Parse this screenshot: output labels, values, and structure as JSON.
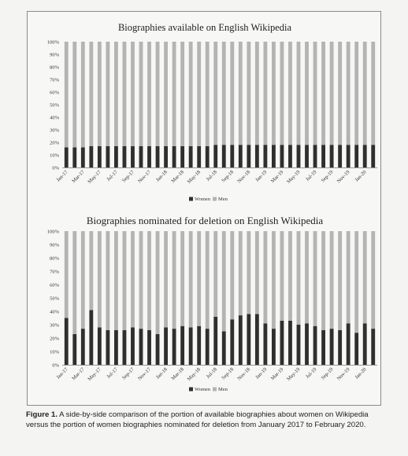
{
  "colors": {
    "women": "#2f2f2f",
    "men": "#b4b4b4",
    "axis": "#777777",
    "text": "#333333"
  },
  "chart_data": [
    {
      "type": "bar",
      "stacked": true,
      "title": "Biographies available on English Wikipedia",
      "ylim": [
        0,
        100
      ],
      "yticks": [
        "0%",
        "10%",
        "20%",
        "30%",
        "40%",
        "50%",
        "60%",
        "70%",
        "80%",
        "90%",
        "100%"
      ],
      "xtick_labels": [
        "Jan-17",
        "Mar-17",
        "May-17",
        "Jul-17",
        "Sep-17",
        "Nov-17",
        "Jan-18",
        "Mar-18",
        "May-18",
        "Jul-18",
        "Sep-18",
        "Nov-18",
        "Jan-19",
        "Mar-19",
        "May-19",
        "Jul-19",
        "Sep-19",
        "Nov-19",
        "Jan-20"
      ],
      "legend_position": "bottom",
      "series": [
        {
          "name": "Women",
          "values": [
            16,
            16,
            16,
            17,
            17,
            17,
            17,
            17,
            17,
            17,
            17,
            17,
            17,
            17,
            17,
            17,
            17,
            17,
            18,
            18,
            18,
            18,
            18,
            18,
            18,
            18,
            18,
            18,
            18,
            18,
            18,
            18,
            18,
            18,
            18,
            18,
            18,
            18
          ]
        },
        {
          "name": "Men",
          "values": [
            84,
            84,
            84,
            83,
            83,
            83,
            83,
            83,
            83,
            83,
            83,
            83,
            83,
            83,
            83,
            83,
            83,
            83,
            82,
            82,
            82,
            82,
            82,
            82,
            82,
            82,
            82,
            82,
            82,
            82,
            82,
            82,
            82,
            82,
            82,
            82,
            82,
            82
          ]
        }
      ]
    },
    {
      "type": "bar",
      "stacked": true,
      "title": "Biographies nominated for deletion on English Wikipedia",
      "ylim": [
        0,
        100
      ],
      "yticks": [
        "0%",
        "10%",
        "20%",
        "30%",
        "40%",
        "50%",
        "60%",
        "70%",
        "80%",
        "90%",
        "100%"
      ],
      "xtick_labels": [
        "Jan-17",
        "Mar-17",
        "May-17",
        "Jul-17",
        "Sep-17",
        "Nov-17",
        "Jan-18",
        "Mar-18",
        "May-18",
        "Jul-18",
        "Sep-18",
        "Nov-18",
        "Jan-19",
        "Mar-19",
        "May-19",
        "Jul-19",
        "Sep-19",
        "Nov-19",
        "Jan-20"
      ],
      "legend_position": "bottom",
      "series": [
        {
          "name": "Women",
          "values": [
            35,
            23,
            27,
            41,
            28,
            26,
            26,
            26,
            28,
            27,
            26,
            23,
            28,
            27,
            29,
            28,
            29,
            27,
            36,
            25,
            34,
            37,
            38,
            38,
            31,
            27,
            33,
            33,
            30,
            31,
            29,
            26,
            27,
            26,
            31,
            24,
            31,
            27
          ]
        },
        {
          "name": "Men",
          "values": [
            65,
            77,
            73,
            59,
            72,
            74,
            74,
            74,
            72,
            73,
            74,
            77,
            72,
            73,
            71,
            72,
            71,
            73,
            64,
            75,
            66,
            63,
            62,
            62,
            69,
            73,
            67,
            67,
            70,
            69,
            71,
            74,
            73,
            74,
            69,
            76,
            69,
            73
          ]
        }
      ]
    }
  ],
  "caption": {
    "label": "Figure 1.",
    "text": " A side-by-side comparison of the portion of available biographies about women on Wikipedia versus the portion of women biographies nominated for deletion from January 2017 to February 2020."
  }
}
